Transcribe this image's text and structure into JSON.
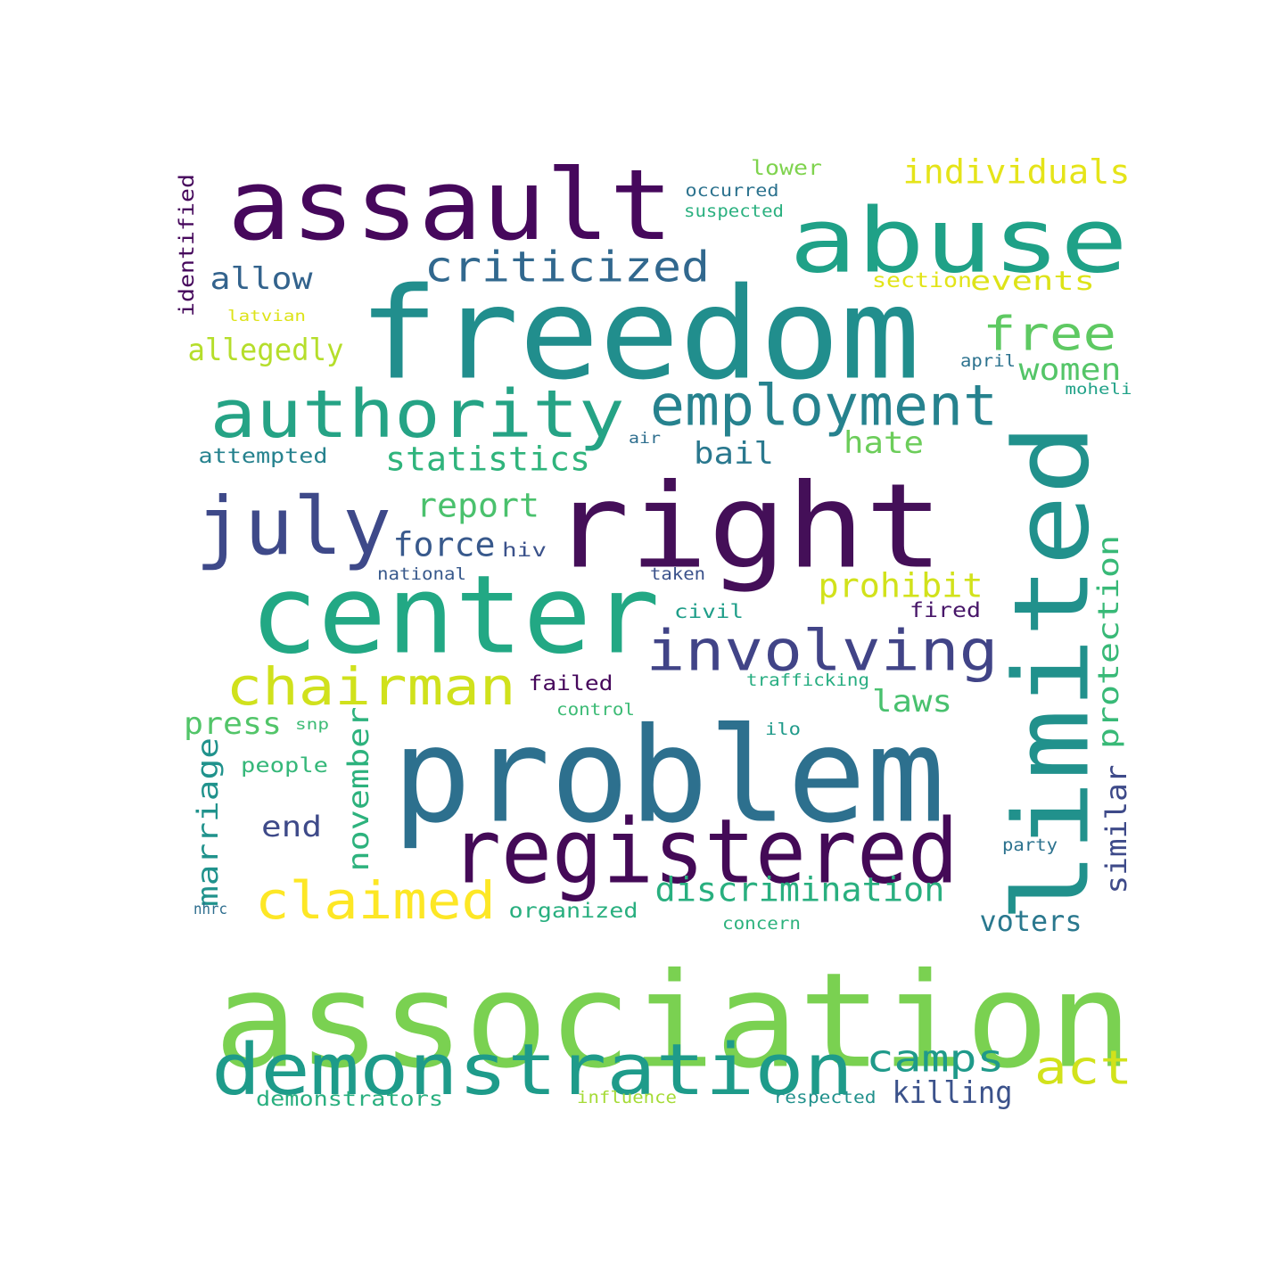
{
  "words": [
    {
      "text": "association",
      "color": "#7ad151"
    },
    {
      "text": "freedom",
      "color": "#218e8d"
    },
    {
      "text": "problem",
      "color": "#2d708e"
    },
    {
      "text": "right",
      "color": "#440f58"
    },
    {
      "text": "limited",
      "color": "#21918c"
    },
    {
      "text": "center",
      "color": "#22a884"
    },
    {
      "text": "assault",
      "color": "#46085c"
    },
    {
      "text": "abuse",
      "color": "#1fa187"
    },
    {
      "text": "registered",
      "color": "#440a57"
    },
    {
      "text": "demonstration",
      "color": "#1e9b8a"
    },
    {
      "text": "authority",
      "color": "#25a385"
    },
    {
      "text": "july",
      "color": "#3e4989"
    },
    {
      "text": "employment",
      "color": "#26828e"
    },
    {
      "text": "involving",
      "color": "#414487"
    },
    {
      "text": "chairman",
      "color": "#d0e11c"
    },
    {
      "text": "claimed",
      "color": "#fde725"
    },
    {
      "text": "criticized",
      "color": "#31688e"
    },
    {
      "text": "free",
      "color": "#5ec962"
    },
    {
      "text": "act",
      "color": "#d2e21b"
    },
    {
      "text": "camps",
      "color": "#1f9a8a"
    },
    {
      "text": "individuals",
      "color": "#e5e419"
    },
    {
      "text": "discrimination",
      "color": "#29af7f"
    },
    {
      "text": "statistics",
      "color": "#2fb47c"
    },
    {
      "text": "report",
      "color": "#4ac16d"
    },
    {
      "text": "force",
      "color": "#38598c"
    },
    {
      "text": "prohibit",
      "color": "#d2e21b"
    },
    {
      "text": "women",
      "color": "#54c568"
    },
    {
      "text": "hate",
      "color": "#6ccd5a"
    },
    {
      "text": "allow",
      "color": "#33638d"
    },
    {
      "text": "allegedly",
      "color": "#b5de2b"
    },
    {
      "text": "bail",
      "color": "#2a788e"
    },
    {
      "text": "press",
      "color": "#52c569"
    },
    {
      "text": "laws",
      "color": "#48c16e"
    },
    {
      "text": "killing",
      "color": "#3b528b"
    },
    {
      "text": "november",
      "color": "#2db27d"
    },
    {
      "text": "marriage",
      "color": "#20928c"
    },
    {
      "text": "protection",
      "color": "#38b977"
    },
    {
      "text": "similar",
      "color": "#3e4a89"
    },
    {
      "text": "end",
      "color": "#3e4a89"
    },
    {
      "text": "voters",
      "color": "#2a788e"
    },
    {
      "text": "events",
      "color": "#dde318"
    },
    {
      "text": "section",
      "color": "#e2e418"
    },
    {
      "text": "attempted",
      "color": "#26828e"
    },
    {
      "text": "people",
      "color": "#35b779"
    },
    {
      "text": "failed",
      "color": "#46085c"
    },
    {
      "text": "organized",
      "color": "#29af7f"
    },
    {
      "text": "demonstrators",
      "color": "#29af7f"
    },
    {
      "text": "identified",
      "color": "#46085c"
    },
    {
      "text": "lower",
      "color": "#7fd34e"
    },
    {
      "text": "fired",
      "color": "#481769"
    },
    {
      "text": "civil",
      "color": "#1f9e89"
    },
    {
      "text": "hiv",
      "color": "#3b528b"
    },
    {
      "text": "national",
      "color": "#38598c"
    },
    {
      "text": "occurred",
      "color": "#2c728e"
    },
    {
      "text": "suspected",
      "color": "#2ab07f"
    },
    {
      "text": "influence",
      "color": "#a5db36"
    },
    {
      "text": "respected",
      "color": "#21918c"
    },
    {
      "text": "trafficking",
      "color": "#27ad81"
    },
    {
      "text": "taken",
      "color": "#3b528b"
    },
    {
      "text": "control",
      "color": "#3cbb75"
    },
    {
      "text": "april",
      "color": "#2c728e"
    },
    {
      "text": "ilo",
      "color": "#1f9a8a"
    },
    {
      "text": "party",
      "color": "#2c728e"
    },
    {
      "text": "concern",
      "color": "#2db27d"
    },
    {
      "text": "air",
      "color": "#2e6e8e"
    },
    {
      "text": "moheli",
      "color": "#1fa187"
    },
    {
      "text": "latvian",
      "color": "#dde318"
    },
    {
      "text": "snp",
      "color": "#3cbb75"
    },
    {
      "text": "nhrc",
      "color": "#2e6e8e"
    }
  ]
}
